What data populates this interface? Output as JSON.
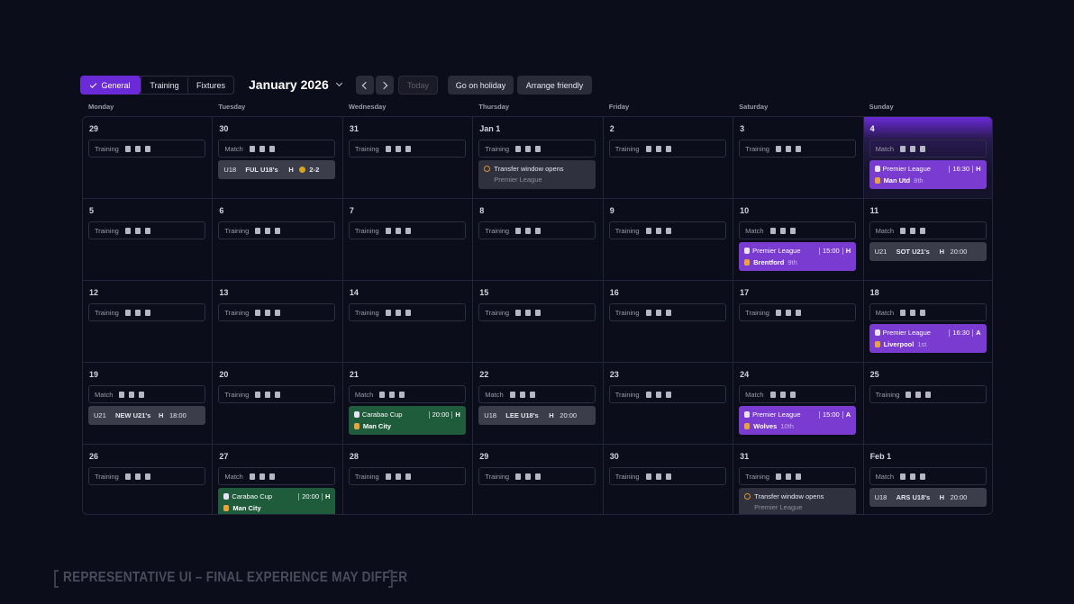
{
  "toolbar": {
    "tabs": [
      "General",
      "Training",
      "Fixtures"
    ],
    "selected_tab": 0,
    "month": "January 2026",
    "today": "Today",
    "actions": [
      "Go on holiday",
      "Arrange friendly"
    ]
  },
  "weekdays": [
    "Monday",
    "Tuesday",
    "Wednesday",
    "Thursday",
    "Friday",
    "Saturday",
    "Sunday"
  ],
  "days": [
    {
      "label": "29",
      "activity": "Training"
    },
    {
      "label": "30",
      "activity": "Match",
      "event": {
        "kind": "result",
        "team": "U18",
        "opponent": "FUL U18's",
        "venue": "H",
        "score": "2-2"
      }
    },
    {
      "label": "31",
      "activity": "Training"
    },
    {
      "label": "Jan 1",
      "activity": "Training",
      "event": {
        "kind": "notice",
        "title": "Transfer window opens",
        "sub": "Premier League"
      }
    },
    {
      "label": "2",
      "activity": "Training"
    },
    {
      "label": "3",
      "activity": "Training"
    },
    {
      "label": "4",
      "activity": "Match",
      "selected": true,
      "event": {
        "kind": "competition",
        "color": "#7a3bd1",
        "competition": "Premier League",
        "time": "16:30",
        "venue": "H",
        "opponent": "Man Utd",
        "position": "8th"
      }
    },
    {
      "label": "5",
      "activity": "Training"
    },
    {
      "label": "6",
      "activity": "Training"
    },
    {
      "label": "7",
      "activity": "Training"
    },
    {
      "label": "8",
      "activity": "Training"
    },
    {
      "label": "9",
      "activity": "Training"
    },
    {
      "label": "10",
      "activity": "Match",
      "event": {
        "kind": "competition",
        "color": "#7a3bd1",
        "competition": "Premier League",
        "time": "15:00",
        "venue": "H",
        "opponent": "Brentford",
        "position": "9th"
      }
    },
    {
      "label": "11",
      "activity": "Match",
      "event": {
        "kind": "fixture",
        "team": "U21",
        "opponent": "SOT U21's",
        "venue": "H",
        "time": "20:00"
      }
    },
    {
      "label": "12",
      "activity": "Training"
    },
    {
      "label": "13",
      "activity": "Training"
    },
    {
      "label": "14",
      "activity": "Training"
    },
    {
      "label": "15",
      "activity": "Training"
    },
    {
      "label": "16",
      "activity": "Training"
    },
    {
      "label": "17",
      "activity": "Training"
    },
    {
      "label": "18",
      "activity": "Match",
      "event": {
        "kind": "competition",
        "color": "#7a3bd1",
        "competition": "Premier League",
        "time": "16:30",
        "venue": "A",
        "opponent": "Liverpool",
        "position": "1st"
      }
    },
    {
      "label": "19",
      "activity": "Match",
      "event": {
        "kind": "fixture",
        "team": "U21",
        "opponent": "NEW U21's",
        "venue": "H",
        "time": "18:00"
      }
    },
    {
      "label": "20",
      "activity": "Training"
    },
    {
      "label": "21",
      "activity": "Match",
      "event": {
        "kind": "competition",
        "color": "#1f5c3c",
        "competition": "Carabao Cup",
        "time": "20:00",
        "venue": "H",
        "opponent": "Man City"
      }
    },
    {
      "label": "22",
      "activity": "Match",
      "event": {
        "kind": "fixture",
        "team": "U18",
        "opponent": "LEE U18's",
        "venue": "H",
        "time": "20:00"
      }
    },
    {
      "label": "23",
      "activity": "Training"
    },
    {
      "label": "24",
      "activity": "Match",
      "event": {
        "kind": "competition",
        "color": "#7a3bd1",
        "competition": "Premier League",
        "time": "15:00",
        "venue": "A",
        "opponent": "Wolves",
        "position": "10th"
      }
    },
    {
      "label": "25",
      "activity": "Training"
    },
    {
      "label": "26",
      "activity": "Training"
    },
    {
      "label": "27",
      "activity": "Match",
      "event": {
        "kind": "competition",
        "color": "#1f5c3c",
        "competition": "Carabao Cup",
        "time": "20:00",
        "venue": "H",
        "opponent": "Man City"
      }
    },
    {
      "label": "28",
      "activity": "Training"
    },
    {
      "label": "29",
      "activity": "Training"
    },
    {
      "label": "30",
      "activity": "Training"
    },
    {
      "label": "31",
      "activity": "Training",
      "event": {
        "kind": "notice",
        "title": "Transfer window opens",
        "sub": "Premier League"
      }
    },
    {
      "label": "Feb 1",
      "activity": "Match",
      "event": {
        "kind": "fixture",
        "team": "U18",
        "opponent": "ARS U18's",
        "venue": "H",
        "time": "20:00"
      }
    }
  ],
  "footer": "REPRESENTATIVE UI – FINAL EXPERIENCE MAY DIFFER"
}
